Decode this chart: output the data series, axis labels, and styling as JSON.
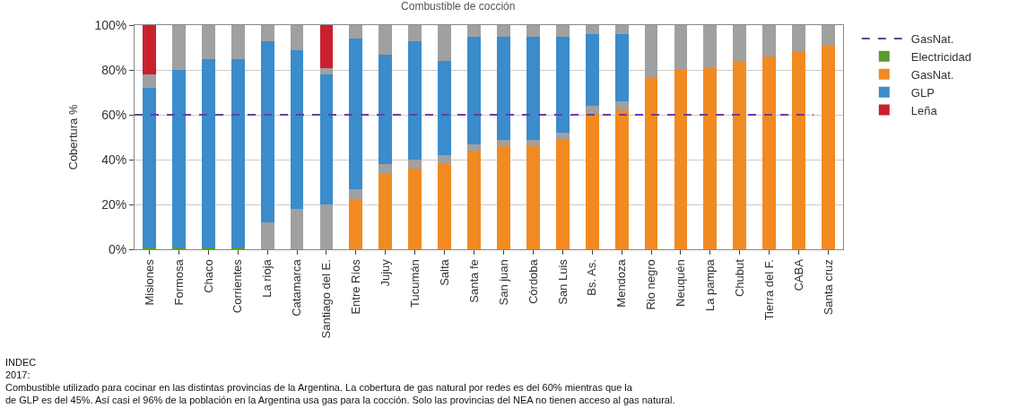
{
  "chart_data": {
    "type": "bar",
    "stacked": true,
    "title": "Combustible de cocción",
    "ylabel": "Cobertura %",
    "categories": [
      "Misiones",
      "Formosa",
      "Chaco",
      "Corrientes",
      "La rioja",
      "Catamarca",
      "Santiago del E.",
      "Entre Ríos",
      "Jujuy",
      "Tucumán",
      "Salta",
      "Santa fe",
      "San juan",
      "Córdoba",
      "San Luis",
      "Bs. As.",
      "Mendoza",
      "Rio negro",
      "Neuquén",
      "La pampa",
      "Chubut",
      "Tierra del F.",
      "CABA",
      "Santa cruz"
    ],
    "series": [
      {
        "name": "Electricidad",
        "color": "#5a9a32",
        "values": [
          1,
          1,
          1,
          1,
          null,
          null,
          null,
          null,
          null,
          null,
          null,
          null,
          null,
          null,
          null,
          null,
          null,
          null,
          null,
          null,
          null,
          null,
          null,
          null
        ]
      },
      {
        "name": "GasNat.",
        "color": "#f28a22",
        "values": [
          null,
          null,
          null,
          null,
          null,
          null,
          null,
          22,
          34,
          36,
          38,
          44,
          46,
          46,
          49,
          61,
          62,
          77,
          80,
          81,
          84,
          86,
          88,
          91
        ]
      },
      {
        "color": "#a0a0a0",
        "values": [
          null,
          null,
          null,
          null,
          12,
          18,
          20,
          5,
          4,
          4,
          4,
          3,
          3,
          3,
          3,
          3,
          4,
          23,
          20,
          19,
          16,
          14,
          12,
          9
        ]
      },
      {
        "name": "GLP",
        "color": "#3a8ccc",
        "values": [
          71,
          79,
          84,
          84,
          81,
          71,
          58,
          67,
          49,
          53,
          42,
          48,
          46,
          46,
          43,
          32,
          30,
          null,
          null,
          null,
          null,
          null,
          null,
          null
        ]
      },
      {
        "color": "#a0a0a0",
        "values": [
          6,
          20,
          15,
          15,
          7,
          11,
          3,
          6,
          13,
          7,
          16,
          5,
          5,
          5,
          5,
          4,
          4,
          null,
          null,
          null,
          null,
          null,
          null,
          null
        ]
      },
      {
        "name": "Leña",
        "color": "#c8202f",
        "values": [
          22,
          null,
          null,
          null,
          null,
          null,
          19,
          null,
          null,
          null,
          null,
          null,
          null,
          null,
          null,
          null,
          null,
          null,
          null,
          null,
          null,
          null,
          null,
          null
        ]
      }
    ],
    "ref_lines": [
      {
        "axis": "y",
        "value": 60,
        "label": "GasNat.",
        "color": "#6a3fa0",
        "line_style": "dashed"
      }
    ],
    "ylim": [
      0,
      100
    ],
    "yticks": [
      {
        "value": 0,
        "label": "0%"
      },
      {
        "value": 20,
        "label": "20%"
      },
      {
        "value": 40,
        "label": "40%"
      },
      {
        "value": 60,
        "label": "60%"
      },
      {
        "value": 80,
        "label": "80%"
      },
      {
        "value": 100,
        "label": "100%"
      }
    ],
    "grid": "y",
    "legend": "right",
    "annotations": [
      "INDEC\n2017:",
      "Combustible utilizado para cocinar en las distintas provincias de la Argentina. La cobertura de gas natural por redes es del 60% mientras que la\nde GLP es del 45%. Así casi el 96% de la población en la Argentina usa gas para la cocción. Solo las provincias del NEA no tienen acceso al gas natural."
    ]
  }
}
